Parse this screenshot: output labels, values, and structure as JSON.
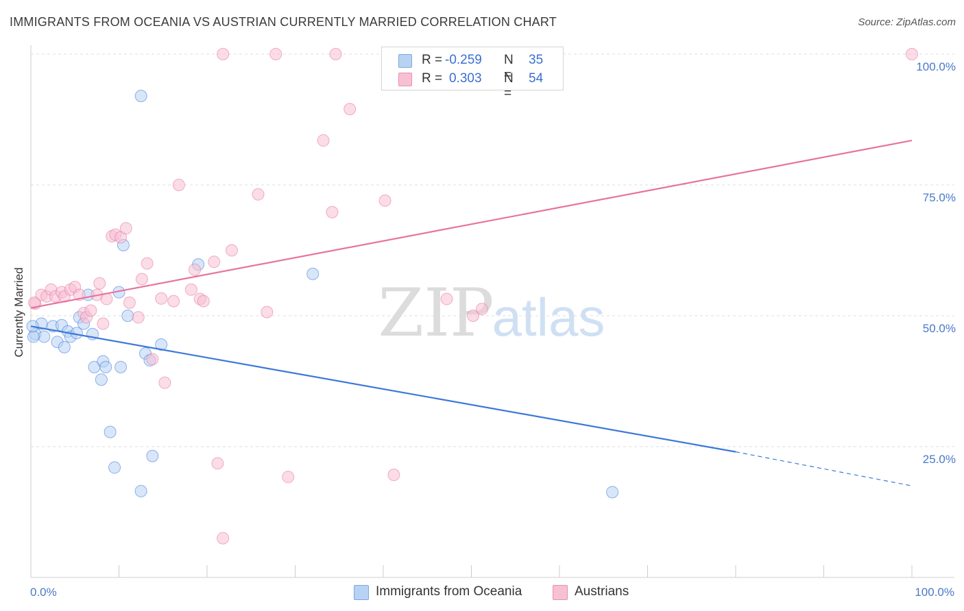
{
  "chart_data": {
    "type": "scatter",
    "title": "IMMIGRANTS FROM OCEANIA VS AUSTRIAN CURRENTLY MARRIED CORRELATION CHART",
    "source": "Source: ZipAtlas.com",
    "ylabel": "Currently Married",
    "xlabel": "",
    "xlim": [
      0,
      100
    ],
    "ylim": [
      0,
      100
    ],
    "x_tick_labels": [
      "0.0%",
      "100.0%"
    ],
    "y_ticks": [
      25,
      50,
      75,
      100
    ],
    "y_tick_labels": [
      "25.0%",
      "50.0%",
      "75.0%",
      "100.0%"
    ],
    "grid": true,
    "watermark": {
      "zip": "ZIP",
      "atlas": "atlas"
    },
    "legend": {
      "r_label": "R =",
      "n_label": "N =",
      "entries": [
        {
          "name": "Immigrants from Oceania",
          "r": "-0.259",
          "n": "35"
        },
        {
          "name": "Austrians",
          "r": "0.303",
          "n": "54"
        }
      ]
    },
    "series": [
      {
        "name": "Immigrants from Oceania",
        "color": "#3a78d8",
        "fill": "#b8d2f4",
        "trend": {
          "x0": 0,
          "y0": 48,
          "x1": 80,
          "y1": 24,
          "dash_to_x": 100,
          "dash_to_y": 17.5
        },
        "points": [
          [
            0.5,
            46.5
          ],
          [
            1.2,
            48.5
          ],
          [
            1.5,
            46
          ],
          [
            2.5,
            48
          ],
          [
            3,
            45
          ],
          [
            3.5,
            48.2
          ],
          [
            3.8,
            44
          ],
          [
            4.2,
            47
          ],
          [
            4.5,
            46
          ],
          [
            5.2,
            46.7
          ],
          [
            5.5,
            49.7
          ],
          [
            6,
            48.5
          ],
          [
            6.5,
            54
          ],
          [
            7,
            46.5
          ],
          [
            7.2,
            40.2
          ],
          [
            8,
            37.8
          ],
          [
            8.2,
            41.3
          ],
          [
            8.5,
            40.2
          ],
          [
            9,
            27.8
          ],
          [
            9.5,
            21
          ],
          [
            10,
            54.5
          ],
          [
            10.2,
            40.2
          ],
          [
            10.5,
            63.5
          ],
          [
            11,
            50
          ],
          [
            12.5,
            92
          ],
          [
            12.5,
            16.5
          ],
          [
            13,
            42.8
          ],
          [
            13.5,
            41.5
          ],
          [
            13.8,
            23.2
          ],
          [
            14.8,
            44.5
          ],
          [
            19,
            59.8
          ],
          [
            32,
            58
          ],
          [
            66,
            16.3
          ],
          [
            0.3,
            46
          ],
          [
            0.2,
            48
          ]
        ]
      },
      {
        "name": "Austrians",
        "color": "#e6739c",
        "fill": "#f7c0d3",
        "trend": {
          "x0": 0,
          "y0": 51.5,
          "x1": 100,
          "y1": 83.5
        },
        "points": [
          [
            0.5,
            52.3
          ],
          [
            1.2,
            54
          ],
          [
            1.8,
            53.7
          ],
          [
            2.3,
            55
          ],
          [
            2.8,
            53.7
          ],
          [
            3.5,
            54.5
          ],
          [
            3.8,
            53.7
          ],
          [
            4.5,
            55
          ],
          [
            5,
            55.5
          ],
          [
            5.5,
            54
          ],
          [
            6,
            50.5
          ],
          [
            6.3,
            49.7
          ],
          [
            6.8,
            51
          ],
          [
            7.5,
            54
          ],
          [
            7.8,
            56.2
          ],
          [
            8.2,
            48.5
          ],
          [
            8.6,
            53.2
          ],
          [
            9.2,
            65.2
          ],
          [
            9.6,
            65.5
          ],
          [
            10.2,
            65
          ],
          [
            10.8,
            66.7
          ],
          [
            11.2,
            52.5
          ],
          [
            12.2,
            49.7
          ],
          [
            12.6,
            57
          ],
          [
            13.2,
            60
          ],
          [
            13.8,
            41.7
          ],
          [
            14.8,
            53.3
          ],
          [
            15.2,
            37.2
          ],
          [
            16.2,
            52.8
          ],
          [
            16.8,
            75
          ],
          [
            18.2,
            55
          ],
          [
            18.6,
            58.8
          ],
          [
            19.2,
            53.2
          ],
          [
            19.6,
            52.8
          ],
          [
            20.8,
            60.3
          ],
          [
            21.2,
            21.8
          ],
          [
            21.8,
            7.5
          ],
          [
            22.8,
            62.5
          ],
          [
            25.8,
            73.2
          ],
          [
            26.8,
            50.7
          ],
          [
            29.2,
            19.2
          ],
          [
            33.2,
            83.5
          ],
          [
            34.2,
            69.8
          ],
          [
            36.2,
            89.5
          ],
          [
            40.2,
            72
          ],
          [
            41.2,
            19.6
          ],
          [
            47.2,
            53.2
          ],
          [
            50.2,
            50
          ],
          [
            51.2,
            51.3
          ],
          [
            21.8,
            100
          ],
          [
            27.8,
            100
          ],
          [
            34.6,
            100
          ],
          [
            100,
            100
          ],
          [
            0.4,
            52.5
          ]
        ]
      }
    ]
  }
}
